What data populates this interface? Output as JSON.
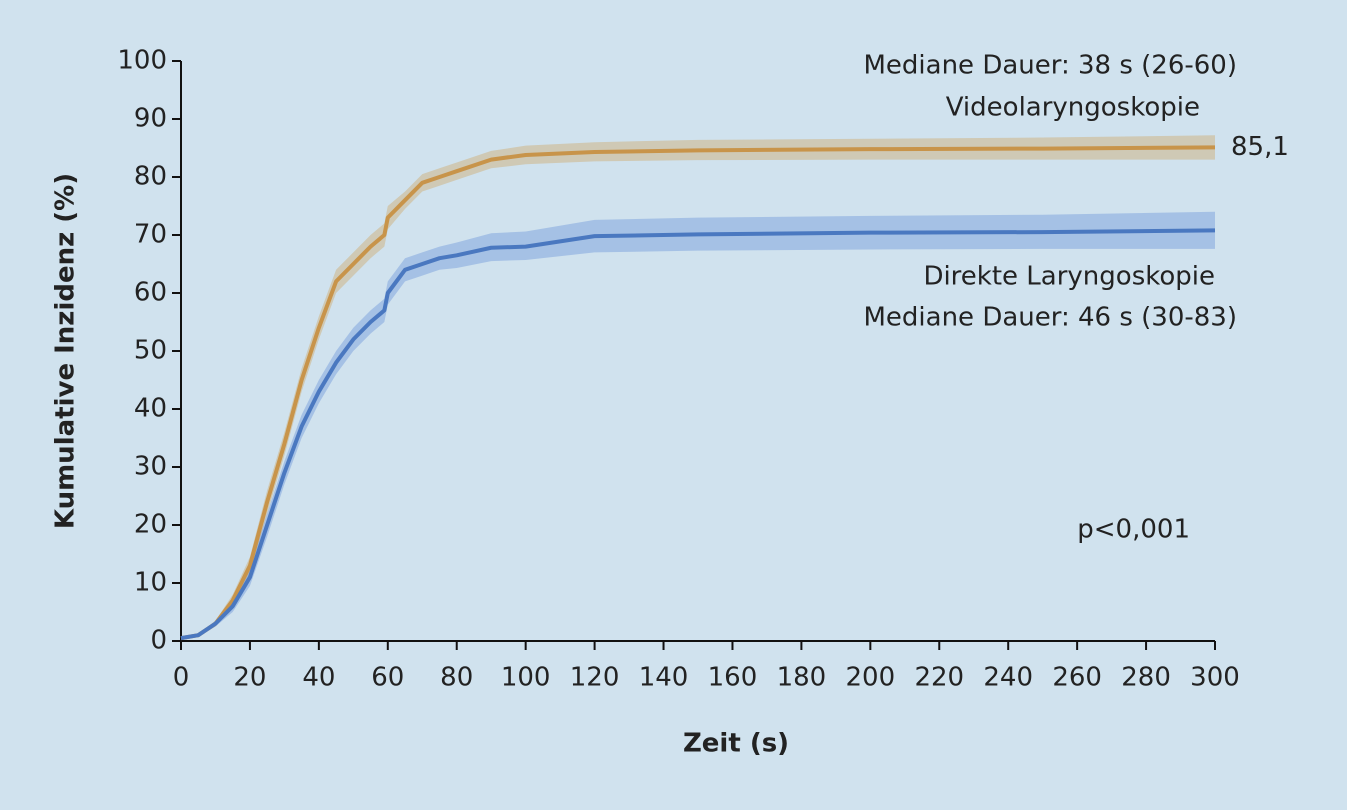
{
  "chart_data": {
    "type": "line",
    "x_label": "Zeit (s)",
    "y_label": "Kumulative Inzidenz (%)",
    "x": [
      0,
      5,
      10,
      15,
      20,
      25,
      30,
      35,
      40,
      45,
      50,
      55,
      59,
      60,
      65,
      70,
      75,
      80,
      90,
      100,
      120,
      150,
      200,
      250,
      300
    ],
    "series": [
      {
        "name": "Videolaryngoskopie",
        "color": "#c8944a",
        "band_color": "rgba(205,165,95,0.4)",
        "values": [
          0.5,
          1,
          3,
          7,
          13,
          24,
          34,
          45,
          54,
          62,
          65,
          68,
          70,
          73,
          76,
          79,
          80,
          81,
          83,
          83.8,
          84.3,
          84.6,
          84.8,
          84.9,
          85.1
        ],
        "lower": [
          0.3,
          0.7,
          2.5,
          6,
          11.5,
          22,
          32,
          43,
          52,
          60,
          63,
          66,
          68,
          71,
          74.5,
          77.5,
          78.5,
          79.5,
          81.5,
          82.2,
          82.7,
          82.9,
          83,
          83,
          83
        ],
        "upper": [
          0.7,
          1.3,
          3.5,
          8,
          14.5,
          26,
          36,
          47,
          56,
          64,
          67,
          70,
          72,
          75,
          77.5,
          80.5,
          81.5,
          82.5,
          84.5,
          85.4,
          86,
          86.4,
          86.6,
          86.8,
          87.2
        ],
        "value_labels": [
          null,
          null,
          null,
          null,
          null,
          null,
          null,
          null,
          null,
          null,
          null,
          null,
          null,
          null,
          null,
          null,
          null,
          null,
          null,
          null,
          null,
          null,
          null,
          null,
          "85,1"
        ]
      },
      {
        "name": "Direkte Laryngoskopie",
        "color": "#4a78c0",
        "band_color": "rgba(95,140,215,0.38)",
        "values": [
          0.5,
          1,
          3,
          6,
          11,
          20,
          29,
          37,
          43,
          48,
          52,
          55,
          57,
          60,
          64,
          65,
          66,
          66.5,
          67.8,
          68,
          69.8,
          70.1,
          70.4,
          70.5,
          70.8
        ],
        "lower": [
          0.3,
          0.7,
          2.5,
          5,
          9.5,
          18,
          27,
          35,
          41,
          46,
          50,
          53,
          55,
          58,
          62,
          63,
          64,
          64.3,
          65.5,
          65.7,
          67,
          67.3,
          67.5,
          67.6,
          67.6
        ],
        "upper": [
          0.7,
          1.3,
          3.5,
          7,
          12.5,
          22,
          31,
          39,
          45,
          50,
          54,
          57,
          59,
          62,
          66,
          67,
          68,
          68.7,
          70.3,
          70.6,
          72.6,
          73,
          73.3,
          73.5,
          74
        ]
      },
      {
        "name": null
      }
    ],
    "annotations": [
      "Mediane Dauer: 38 s (26-60)",
      "Videolaryngoskopie",
      "Direkte Laryngoskopie",
      "Mediane Dauer: 46 s (30-83)",
      "p<0,001"
    ],
    "xlim": [
      0,
      300
    ],
    "ylim": [
      0,
      100
    ],
    "xticks": [
      0,
      20,
      40,
      60,
      80,
      100,
      120,
      140,
      160,
      180,
      200,
      220,
      240,
      260,
      280,
      300
    ],
    "yticks": [
      0,
      10,
      20,
      30,
      40,
      50,
      60,
      70,
      80,
      90,
      100
    ],
    "grid": false
  }
}
